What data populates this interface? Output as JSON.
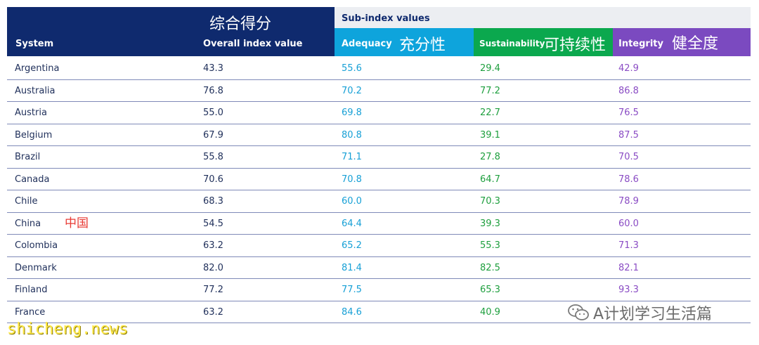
{
  "header": {
    "system_label": "System",
    "overall_label": "Overall index value",
    "overall_cn": "综合得分",
    "subindex_label": "Sub-index values",
    "adequacy_label": "Adequacy",
    "adequacy_cn": "充分性",
    "sustainability_label": "Sustainability",
    "sustainability_cn": "可持续性",
    "integrity_label": "Integrity",
    "integrity_cn": "健全度"
  },
  "colors": {
    "header_navy": "#0f2a6e",
    "adequacy": "#0ea4dc",
    "sustainability": "#0ba84e",
    "integrity": "#7b4ac0",
    "china_annotation": "#e83a34"
  },
  "rows": [
    {
      "system": "Argentina",
      "overall": "43.3",
      "adequacy": "55.6",
      "sustainability": "29.4",
      "integrity": "42.9"
    },
    {
      "system": "Australia",
      "overall": "76.8",
      "adequacy": "70.2",
      "sustainability": "77.2",
      "integrity": "86.8"
    },
    {
      "system": "Austria",
      "overall": "55.0",
      "adequacy": "69.8",
      "sustainability": "22.7",
      "integrity": "76.5"
    },
    {
      "system": "Belgium",
      "overall": "67.9",
      "adequacy": "80.8",
      "sustainability": "39.1",
      "integrity": "87.5"
    },
    {
      "system": "Brazil",
      "overall": "55.8",
      "adequacy": "71.1",
      "sustainability": "27.8",
      "integrity": "70.5"
    },
    {
      "system": "Canada",
      "overall": "70.6",
      "adequacy": "70.8",
      "sustainability": "64.7",
      "integrity": "78.6"
    },
    {
      "system": "Chile",
      "overall": "68.3",
      "adequacy": "60.0",
      "sustainability": "70.3",
      "integrity": "78.9"
    },
    {
      "system": "China",
      "system_cn": "中国",
      "overall": "54.5",
      "adequacy": "64.4",
      "sustainability": "39.3",
      "integrity": "60.0"
    },
    {
      "system": "Colombia",
      "overall": "63.2",
      "adequacy": "65.2",
      "sustainability": "55.3",
      "integrity": "71.3"
    },
    {
      "system": "Denmark",
      "overall": "82.0",
      "adequacy": "81.4",
      "sustainability": "82.5",
      "integrity": "82.1"
    },
    {
      "system": "Finland",
      "overall": "77.2",
      "adequacy": "77.5",
      "sustainability": "65.3",
      "integrity": "93.3"
    },
    {
      "system": "France",
      "overall": "63.2",
      "adequacy": "84.6",
      "sustainability": "40.9",
      "integrity": ""
    }
  ],
  "watermarks": {
    "left": "shicheng.news",
    "right": "A计划学习生活篇",
    "right_icon": "wechat-logo-icon"
  }
}
